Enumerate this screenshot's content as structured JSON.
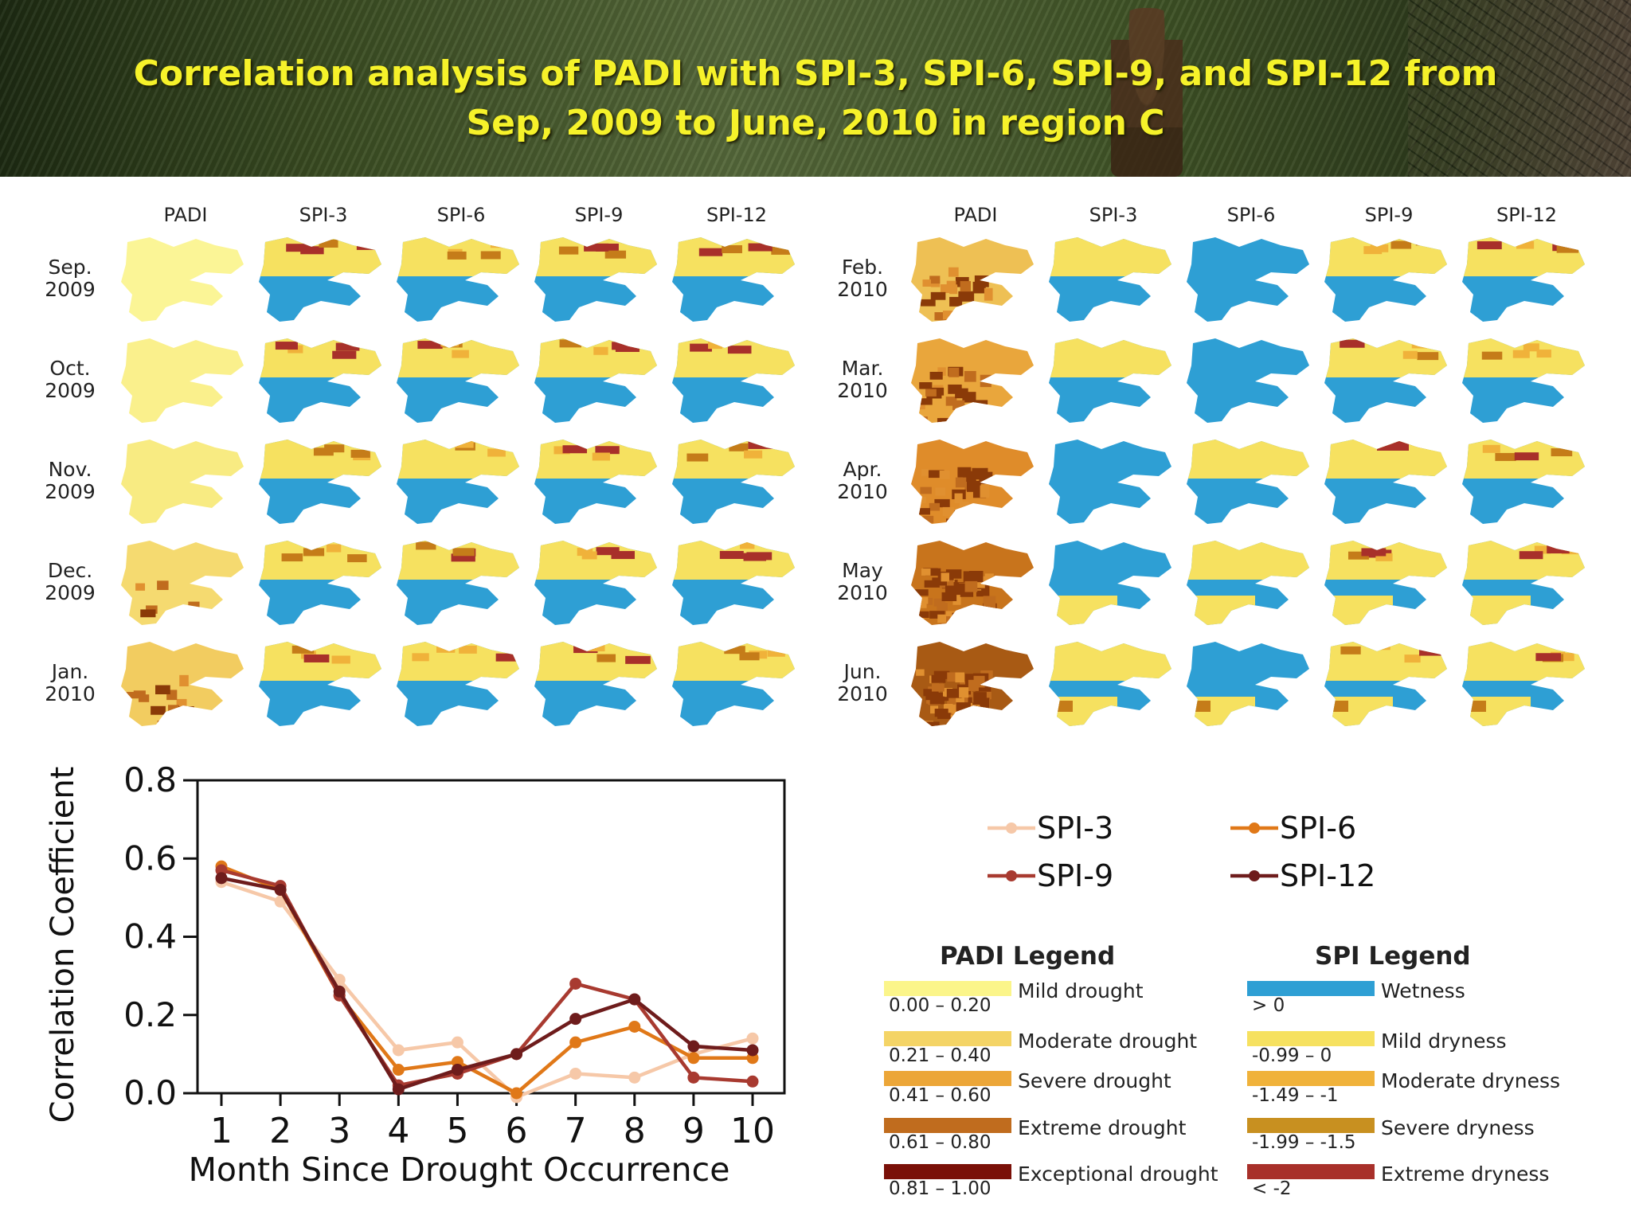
{
  "title": "Correlation analysis of PADI with SPI-3, SPI-6, SPI-9, and SPI-12 from\nSep, 2009 to June, 2010 in region C",
  "map_grid": {
    "columns": [
      "PADI",
      "SPI-3",
      "SPI-6",
      "SPI-9",
      "SPI-12"
    ],
    "left_months": [
      "Sep.\n2009",
      "Oct.\n2009",
      "Nov.\n2009",
      "Dec.\n2009",
      "Jan.\n2010"
    ],
    "right_months": [
      "Feb.\n2010",
      "Mar.\n2010",
      "Apr.\n2010",
      "May\n2010",
      "Jun.\n2010"
    ],
    "padi_shades": [
      "#fbf596",
      "#faf08c",
      "#f8eb82",
      "#f5da70",
      "#f2cc60",
      "#eec054",
      "#e9a63c",
      "#df8c2a",
      "#c8741c",
      "#a85a14"
    ],
    "padi_hot": [
      0,
      0,
      0,
      0.1,
      0.2,
      0.3,
      0.4,
      0.55,
      0.75,
      0.9
    ],
    "colors": {
      "wetness": "#2e9fd4",
      "mild_dryness": "#f6e160",
      "moderate_dryness": "#f0b23a",
      "severe_dryness": "#c57c19",
      "extreme_dryness": "#a8302a",
      "exceptional": "#8a1414"
    }
  },
  "chart_data": {
    "type": "line",
    "x": [
      1,
      2,
      3,
      4,
      5,
      6,
      7,
      8,
      9,
      10
    ],
    "xlabel": "Month Since Drought Occurrence",
    "ylabel": "Correlation Coefficient",
    "ylim": [
      0,
      0.8
    ],
    "yticks": [
      "0.0",
      "0.2",
      "0.4",
      "0.6",
      "0.8"
    ],
    "xticks": [
      "1",
      "2",
      "3",
      "4",
      "5",
      "6",
      "7",
      "8",
      "9",
      "10"
    ],
    "series": [
      {
        "name": "SPI-3",
        "color": "#f6c8a8",
        "values": [
          0.54,
          0.49,
          0.29,
          0.11,
          0.13,
          -0.01,
          0.05,
          0.04,
          0.1,
          0.14
        ]
      },
      {
        "name": "SPI-6",
        "color": "#e07818",
        "values": [
          0.58,
          0.52,
          0.25,
          0.06,
          0.08,
          0.0,
          0.13,
          0.17,
          0.09,
          0.09
        ]
      },
      {
        "name": "SPI-9",
        "color": "#a83a30",
        "values": [
          0.57,
          0.53,
          0.25,
          0.02,
          0.05,
          0.1,
          0.28,
          0.24,
          0.04,
          0.03
        ]
      },
      {
        "name": "SPI-12",
        "color": "#6e1c1c",
        "values": [
          0.55,
          0.52,
          0.26,
          0.01,
          0.06,
          0.1,
          0.19,
          0.24,
          0.12,
          0.11
        ]
      }
    ],
    "grid": false,
    "legend": "right"
  },
  "padi_legend": {
    "title": "PADI Legend",
    "items": [
      {
        "range": "0.00 – 0.20",
        "label": "Mild drought",
        "color": "#fbf58a"
      },
      {
        "range": "0.21 – 0.40",
        "label": "Moderate drought",
        "color": "#f4d466"
      },
      {
        "range": "0.41 – 0.60",
        "label": "Severe drought",
        "color": "#eca638"
      },
      {
        "range": "0.61 – 0.80",
        "label": "Extreme drought",
        "color": "#c06c1e"
      },
      {
        "range": "0.81 – 1.00",
        "label": "Exceptional drought",
        "color": "#7a1008"
      }
    ]
  },
  "spi_legend": {
    "title": "SPI Legend",
    "items": [
      {
        "range": "> 0",
        "label": "Wetness",
        "color": "#2e9fd4"
      },
      {
        "range": "-0.99 – 0",
        "label": "Mild dryness",
        "color": "#f6e160"
      },
      {
        "range": "-1.49 – -1",
        "label": "Moderate dryness",
        "color": "#f0b23a"
      },
      {
        "range": "-1.99 – -1.5",
        "label": "Severe dryness",
        "color": "#c89020"
      },
      {
        "range": "< -2",
        "label": "Extreme dryness",
        "color": "#a8302a"
      }
    ]
  }
}
